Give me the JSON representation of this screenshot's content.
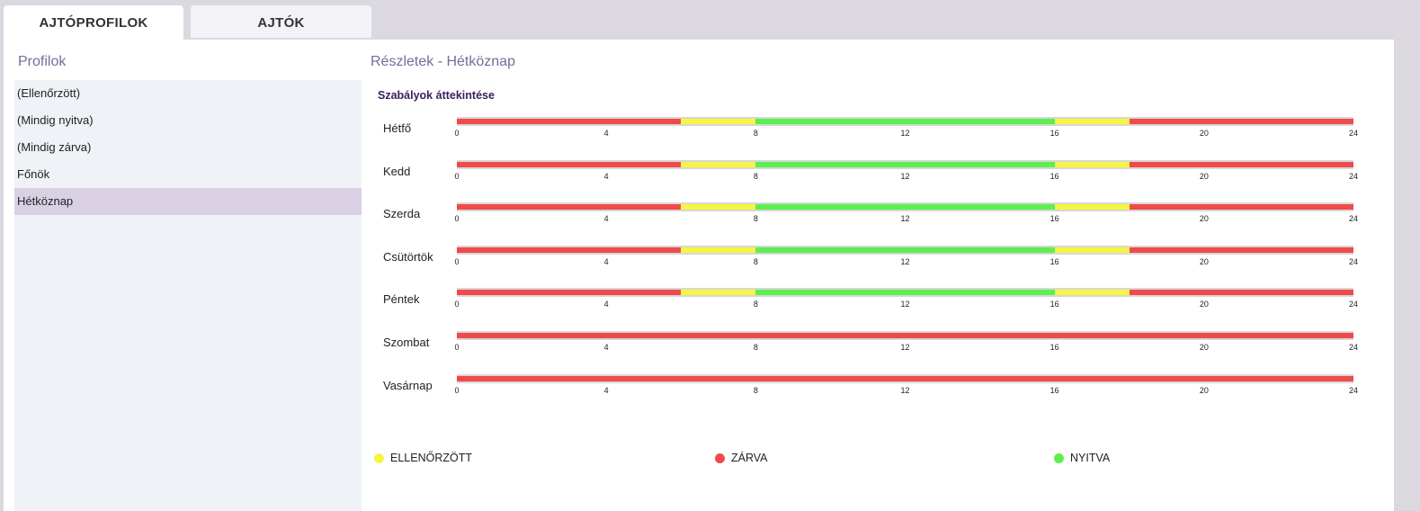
{
  "tabs": [
    {
      "label": "AJTÓPROFILOK",
      "active": true
    },
    {
      "label": "AJTÓK",
      "active": false
    }
  ],
  "profiles": {
    "title": "Profilok",
    "items": [
      "(Ellenőrzött)",
      "(Mindig nyitva)",
      "(Mindig zárva)",
      "Főnök",
      "Hétköznap"
    ],
    "selected_index": 4
  },
  "details": {
    "title": "Részletek - Hétköznap",
    "overview_title": "Szabályok áttekintése"
  },
  "schedule": {
    "axis_ticks": [
      "0",
      "4",
      "8",
      "12",
      "16",
      "20",
      "24"
    ],
    "days": [
      {
        "name": "Hétfő",
        "segments": [
          {
            "from": 0,
            "to": 6,
            "state": "closed"
          },
          {
            "from": 6,
            "to": 8,
            "state": "checked"
          },
          {
            "from": 8,
            "to": 16,
            "state": "open"
          },
          {
            "from": 16,
            "to": 18,
            "state": "checked"
          },
          {
            "from": 18,
            "to": 24,
            "state": "closed"
          }
        ]
      },
      {
        "name": "Kedd",
        "segments": [
          {
            "from": 0,
            "to": 6,
            "state": "closed"
          },
          {
            "from": 6,
            "to": 8,
            "state": "checked"
          },
          {
            "from": 8,
            "to": 16,
            "state": "open"
          },
          {
            "from": 16,
            "to": 18,
            "state": "checked"
          },
          {
            "from": 18,
            "to": 24,
            "state": "closed"
          }
        ]
      },
      {
        "name": "Szerda",
        "segments": [
          {
            "from": 0,
            "to": 6,
            "state": "closed"
          },
          {
            "from": 6,
            "to": 8,
            "state": "checked"
          },
          {
            "from": 8,
            "to": 16,
            "state": "open"
          },
          {
            "from": 16,
            "to": 18,
            "state": "checked"
          },
          {
            "from": 18,
            "to": 24,
            "state": "closed"
          }
        ]
      },
      {
        "name": "Csütörtök",
        "segments": [
          {
            "from": 0,
            "to": 6,
            "state": "closed"
          },
          {
            "from": 6,
            "to": 8,
            "state": "checked"
          },
          {
            "from": 8,
            "to": 16,
            "state": "open"
          },
          {
            "from": 16,
            "to": 18,
            "state": "checked"
          },
          {
            "from": 18,
            "to": 24,
            "state": "closed"
          }
        ]
      },
      {
        "name": "Péntek",
        "segments": [
          {
            "from": 0,
            "to": 6,
            "state": "closed"
          },
          {
            "from": 6,
            "to": 8,
            "state": "checked"
          },
          {
            "from": 8,
            "to": 16,
            "state": "open"
          },
          {
            "from": 16,
            "to": 18,
            "state": "checked"
          },
          {
            "from": 18,
            "to": 24,
            "state": "closed"
          }
        ]
      },
      {
        "name": "Szombat",
        "segments": [
          {
            "from": 0,
            "to": 24,
            "state": "closed"
          }
        ]
      },
      {
        "name": "Vasárnap",
        "segments": [
          {
            "from": 0,
            "to": 24,
            "state": "closed"
          }
        ]
      }
    ]
  },
  "legend": [
    {
      "label": "ELLENŐRZÖTT",
      "state": "checked"
    },
    {
      "label": "ZÁRVA",
      "state": "closed"
    },
    {
      "label": "NYITVA",
      "state": "open"
    }
  ],
  "colors": {
    "checked": "#f5f542",
    "closed": "#f04a4a",
    "open": "#5cf04f"
  }
}
